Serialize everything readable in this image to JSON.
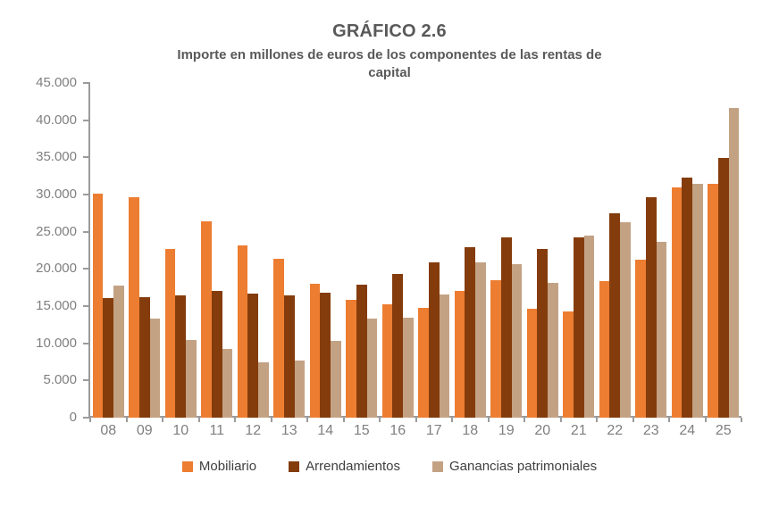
{
  "chart_data": {
    "type": "bar",
    "title": "GRÁFICO 2.6",
    "subtitle": "Importe en millones de euros de los componentes de las rentas de capital",
    "subtitle_lines": [
      "Importe en millones de euros de los componentes de las rentas de",
      "capital"
    ],
    "categories": [
      "08",
      "09",
      "10",
      "11",
      "12",
      "13",
      "14",
      "15",
      "16",
      "17",
      "18",
      "19",
      "20",
      "21",
      "22",
      "23",
      "24",
      "25"
    ],
    "series": [
      {
        "name": "Mobiliario",
        "color": "#ED7D31",
        "values": [
          30100,
          29700,
          22700,
          26400,
          23200,
          21400,
          18000,
          15800,
          15300,
          14800,
          17100,
          18500,
          14700,
          14300,
          18400,
          21200,
          31000,
          31500
        ]
      },
      {
        "name": "Arrendamientos",
        "color": "#843C0C",
        "values": [
          16100,
          16200,
          16500,
          17000,
          16700,
          16400,
          16800,
          17900,
          19300,
          20900,
          22900,
          24200,
          22700,
          24300,
          27500,
          29600,
          32300,
          34900
        ]
      },
      {
        "name": "Ganancias patrimoniales",
        "color": "#C3A284",
        "values": [
          17800,
          13300,
          10400,
          9200,
          7400,
          7700,
          10300,
          13300,
          13400,
          16600,
          20900,
          20600,
          18100,
          24500,
          26300,
          23700,
          31400,
          41700
        ]
      }
    ],
    "ylim": [
      0,
      45000
    ],
    "ytick_step": 5000,
    "ytick_labels": [
      "0",
      "5.000",
      "10.000",
      "15.000",
      "20.000",
      "25.000",
      "30.000",
      "35.000",
      "40.000",
      "45.000"
    ],
    "xlabel": "",
    "ylabel": "",
    "grid": false,
    "legend_position": "bottom",
    "palette": {
      "title_text": "#595959",
      "axis_text": "#7F7F7F",
      "legend_text": "#3F3F3F",
      "axis_line": "#9B9B9B",
      "background": "#FFFFFF"
    }
  }
}
